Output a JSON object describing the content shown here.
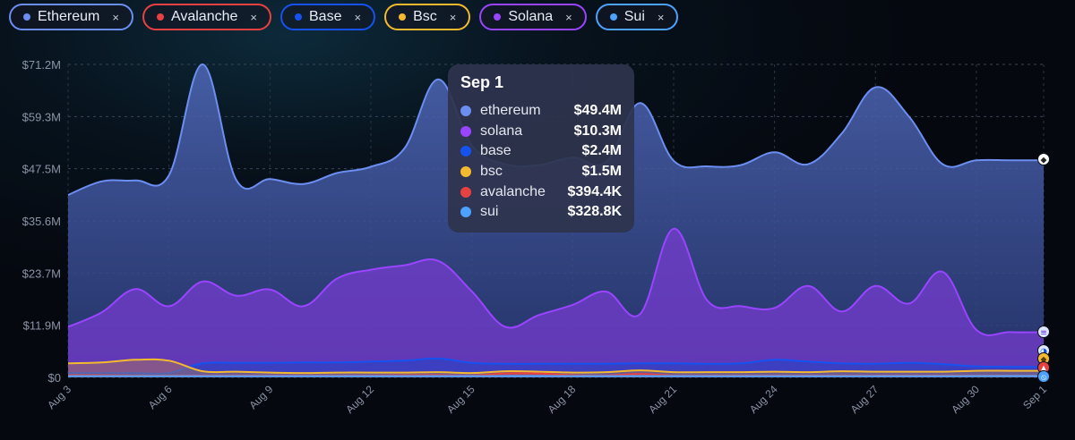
{
  "filters": [
    {
      "label": "Ethereum",
      "color": "#6b8ef0",
      "remove": "×"
    },
    {
      "label": "Avalanche",
      "color": "#e84142",
      "remove": "×"
    },
    {
      "label": "Base",
      "color": "#1652f0",
      "remove": "×"
    },
    {
      "label": "Bsc",
      "color": "#f3ba2f",
      "remove": "×"
    },
    {
      "label": "Solana",
      "color": "#9945ff",
      "remove": "×"
    },
    {
      "label": "Sui",
      "color": "#4da2ff",
      "remove": "×"
    }
  ],
  "tooltip": {
    "date": "Sep 1",
    "rows": [
      {
        "name": "ethereum",
        "value": "$49.4M",
        "color": "#6b8ef0"
      },
      {
        "name": "solana",
        "value": "$10.3M",
        "color": "#9945ff"
      },
      {
        "name": "base",
        "value": "$2.4M",
        "color": "#1652f0"
      },
      {
        "name": "bsc",
        "value": "$1.5M",
        "color": "#f3ba2f"
      },
      {
        "name": "avalanche",
        "value": "$394.4K",
        "color": "#e84142"
      },
      {
        "name": "sui",
        "value": "$328.8K",
        "color": "#4da2ff"
      }
    ]
  },
  "chart_data": {
    "type": "area",
    "x": [
      "Aug 3",
      "Aug 4",
      "Aug 5",
      "Aug 6",
      "Aug 7",
      "Aug 8",
      "Aug 9",
      "Aug 10",
      "Aug 11",
      "Aug 12",
      "Aug 13",
      "Aug 14",
      "Aug 15",
      "Aug 16",
      "Aug 17",
      "Aug 18",
      "Aug 19",
      "Aug 20",
      "Aug 21",
      "Aug 22",
      "Aug 23",
      "Aug 24",
      "Aug 25",
      "Aug 26",
      "Aug 27",
      "Aug 28",
      "Aug 29",
      "Aug 30",
      "Aug 31",
      "Sep 1"
    ],
    "x_tick_labels": [
      "Aug 3",
      "Aug 6",
      "Aug 9",
      "Aug 12",
      "Aug 15",
      "Aug 18",
      "Aug 21",
      "Aug 24",
      "Aug 27",
      "Aug 30",
      "Sep 1"
    ],
    "y_tick_labels": [
      "$0",
      "$11.9M",
      "$23.7M",
      "$35.6M",
      "$47.5M",
      "$59.3M",
      "$71.2M"
    ],
    "ylim": [
      0,
      71.2
    ],
    "y_unit": "$M",
    "grid": true,
    "series": [
      {
        "name": "ethereum",
        "color": "#6b8ef0",
        "values": [
          41.5,
          44.6,
          44.8,
          46.0,
          71.2,
          44.9,
          45.1,
          44.0,
          46.5,
          47.9,
          52.1,
          67.8,
          52.8,
          48.5,
          48.3,
          50.0,
          49.0,
          62.4,
          49.3,
          48.0,
          48.3,
          51.2,
          48.5,
          55.5,
          66.0,
          59.3,
          48.5,
          49.4,
          49.4,
          49.4
        ]
      },
      {
        "name": "solana",
        "color": "#9945ff",
        "values": [
          11.5,
          14.8,
          20.1,
          16.2,
          21.8,
          18.6,
          20.0,
          16.2,
          22.5,
          24.5,
          25.5,
          26.5,
          19.6,
          11.5,
          14.2,
          16.5,
          19.5,
          14.4,
          33.8,
          17.5,
          16.2,
          15.8,
          20.8,
          15.0,
          20.8,
          16.8,
          24.0,
          10.8,
          10.3,
          10.3
        ]
      },
      {
        "name": "base",
        "color": "#1652f0",
        "values": [
          1.0,
          1.0,
          1.0,
          1.0,
          3.2,
          3.3,
          3.3,
          3.4,
          3.4,
          3.6,
          3.8,
          4.3,
          3.3,
          3.1,
          3.1,
          3.1,
          3.1,
          3.2,
          3.2,
          3.1,
          3.2,
          4.0,
          3.6,
          3.2,
          3.1,
          3.3,
          3.0,
          2.5,
          2.4,
          2.4
        ]
      },
      {
        "name": "bsc",
        "color": "#f3ba2f",
        "values": [
          3.2,
          3.4,
          4.0,
          3.8,
          1.4,
          1.3,
          1.1,
          1.0,
          1.1,
          1.1,
          1.1,
          1.2,
          1.0,
          1.4,
          1.3,
          1.1,
          1.2,
          1.6,
          1.2,
          1.2,
          1.2,
          1.3,
          1.2,
          1.4,
          1.3,
          1.3,
          1.3,
          1.5,
          1.5,
          1.5
        ]
      },
      {
        "name": "avalanche",
        "color": "#e84142",
        "values": [
          0.5,
          0.5,
          0.4,
          0.4,
          0.4,
          0.4,
          0.4,
          0.4,
          0.4,
          0.4,
          0.5,
          0.5,
          0.4,
          0.9,
          0.9,
          0.5,
          0.4,
          0.8,
          0.4,
          0.4,
          0.4,
          0.4,
          0.4,
          0.4,
          0.4,
          0.4,
          0.4,
          0.4,
          0.394,
          0.394
        ]
      },
      {
        "name": "sui",
        "color": "#4da2ff",
        "values": [
          0.3,
          0.3,
          0.3,
          0.3,
          0.3,
          0.3,
          0.3,
          0.3,
          0.3,
          0.3,
          0.3,
          0.3,
          0.3,
          0.3,
          0.3,
          0.3,
          0.3,
          0.3,
          0.3,
          0.3,
          0.3,
          0.3,
          0.3,
          0.3,
          0.3,
          0.3,
          0.3,
          0.33,
          0.329,
          0.329
        ]
      }
    ]
  }
}
